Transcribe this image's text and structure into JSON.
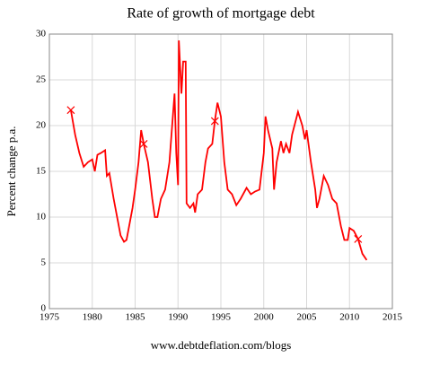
{
  "chart_data": {
    "type": "line",
    "title": "Rate of growth of mortgage debt",
    "ylabel": "Percent change p.a.",
    "footer": "www.debtdeflation.com/blogs",
    "color": "#ff0000",
    "x": [
      1977.5,
      1978,
      1978.5,
      1979,
      1979.5,
      1980,
      1980.3,
      1980.6,
      1981,
      1981.5,
      1981.7,
      1982,
      1982.5,
      1983,
      1983.3,
      1983.7,
      1984,
      1984.3,
      1984.7,
      1985,
      1985.4,
      1985.7,
      1986,
      1986.5,
      1987,
      1987.3,
      1987.6,
      1988,
      1988.5,
      1989,
      1989.4,
      1989.6,
      1989.8,
      1990,
      1990.1,
      1990.4,
      1990.6,
      1990.9,
      1991,
      1991.4,
      1991.8,
      1992,
      1992.3,
      1992.8,
      1993.2,
      1993.5,
      1994,
      1994.3,
      1994.6,
      1995,
      1995.4,
      1995.8,
      1996.3,
      1996.8,
      1997.3,
      1998,
      1998.5,
      1999,
      1999.5,
      2000,
      2000.2,
      2000.5,
      2001,
      2001.2,
      2001.5,
      2002,
      2002.3,
      2002.6,
      2003,
      2003.3,
      2004,
      2004.5,
      2004.8,
      2005,
      2005.5,
      2006,
      2006.2,
      2006.5,
      2007,
      2007.5,
      2008,
      2008.5,
      2009,
      2009.4,
      2009.8,
      2010,
      2010.5,
      2011,
      2011.5,
      2012
    ],
    "values": [
      21.7,
      19,
      17,
      15.5,
      16,
      16.3,
      15,
      16.8,
      17,
      17.3,
      14.5,
      14.8,
      12,
      9.5,
      8,
      7.3,
      7.5,
      9,
      11,
      13,
      16,
      19.5,
      18,
      16,
      12,
      10,
      10,
      12,
      13,
      16,
      21,
      23.5,
      17,
      13.5,
      29.3,
      23.5,
      27,
      27,
      11.5,
      11,
      11.5,
      10.5,
      12.5,
      13,
      16,
      17.5,
      18,
      20.5,
      22.5,
      21,
      16,
      13,
      12.5,
      11.3,
      12,
      13.2,
      12.5,
      12.8,
      13,
      17,
      21,
      19.5,
      17.5,
      13,
      16,
      18.3,
      17,
      18,
      17,
      19,
      21.5,
      20,
      18.5,
      19.5,
      16,
      13,
      11,
      12,
      14.5,
      13.5,
      12,
      11.5,
      9,
      7.5,
      7.5,
      8.8,
      8.5,
      7.6,
      6,
      5.3
    ],
    "markers": {
      "x": [
        1977.5,
        1986,
        1994.3,
        2011
      ],
      "values": [
        21.7,
        18,
        20.5,
        7.6
      ]
    },
    "xlim": [
      1975,
      2015
    ],
    "xticks": [
      1975,
      1980,
      1985,
      1990,
      1995,
      2000,
      2005,
      2010,
      2015
    ],
    "ylim": [
      0,
      30
    ],
    "yticks": [
      0,
      5,
      10,
      15,
      20,
      25,
      30
    ],
    "grid": true
  }
}
